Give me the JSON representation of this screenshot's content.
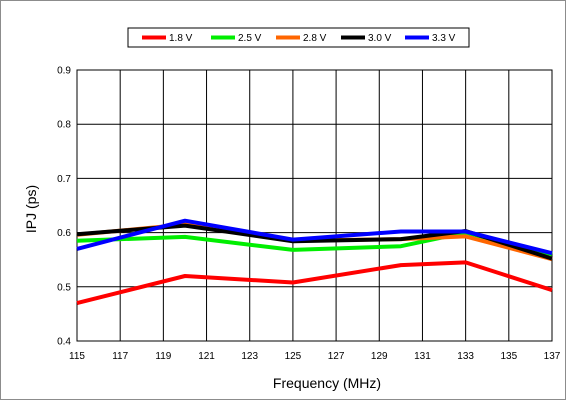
{
  "chart_data": {
    "type": "line",
    "title": "",
    "xlabel": "Frequency (MHz)",
    "ylabel": "IPJ (ps)",
    "xlim": [
      115,
      137
    ],
    "ylim": [
      0.4,
      0.9
    ],
    "x_ticks": [
      "115",
      "117",
      "119",
      "121",
      "123",
      "125",
      "127",
      "129",
      "131",
      "133",
      "135",
      "137"
    ],
    "y_ticks": [
      "0.4",
      "0.5",
      "0.6",
      "0.7",
      "0.8",
      "0.9"
    ],
    "grid": "horizontal and vertical major gridlines",
    "legend_position": "top-center",
    "series": [
      {
        "name": "1.8 V",
        "color": "#ff0000",
        "x": [
          115,
          120,
          125,
          130,
          133,
          137
        ],
        "y": [
          0.47,
          0.52,
          0.508,
          0.54,
          0.545,
          0.494
        ]
      },
      {
        "name": "2.5 V",
        "color": "#00ee00",
        "x": [
          115,
          120,
          125,
          130,
          133,
          137
        ],
        "y": [
          0.585,
          0.592,
          0.568,
          0.575,
          0.6,
          0.56
        ]
      },
      {
        "name": "2.8 V",
        "color": "#ff6600",
        "x": [
          115,
          120,
          125,
          130,
          133,
          137
        ],
        "y": [
          0.596,
          0.615,
          0.585,
          0.588,
          0.593,
          0.551
        ]
      },
      {
        "name": "3.0 V",
        "color": "#000000",
        "x": [
          115,
          120,
          125,
          130,
          133,
          137
        ],
        "y": [
          0.597,
          0.613,
          0.584,
          0.588,
          0.603,
          0.552
        ]
      },
      {
        "name": "3.3 V",
        "color": "#0000ff",
        "x": [
          115,
          120,
          125,
          130,
          133,
          137
        ],
        "y": [
          0.57,
          0.622,
          0.587,
          0.602,
          0.602,
          0.562
        ]
      }
    ]
  }
}
